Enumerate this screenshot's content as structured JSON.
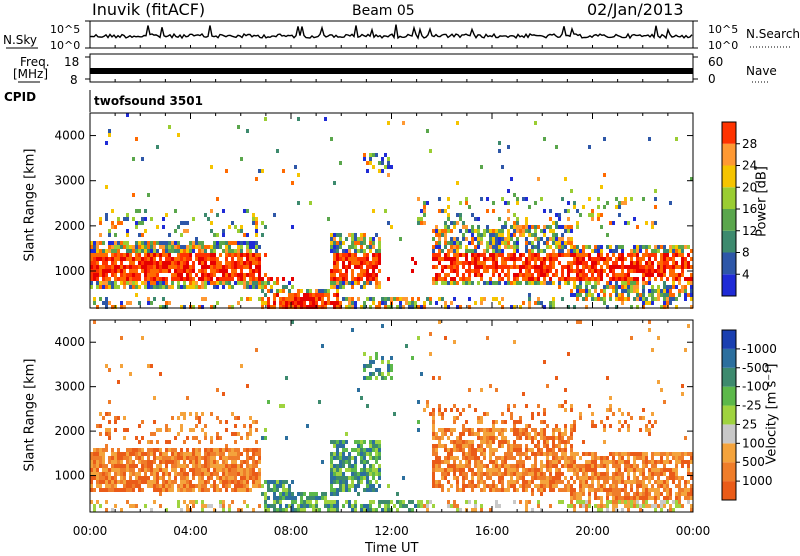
{
  "header": {
    "station": "Inuvik (fitACF)",
    "beam": "Beam 05",
    "date": "02/Jan/2013"
  },
  "strips": {
    "nsky_label": "N.Sky",
    "nsky_ticks": [
      "10^5",
      "10^0"
    ],
    "nsearch_label": "N.Search",
    "nsearch_ticks": [
      "10^5",
      "10^0"
    ],
    "freq_label_top": "Freq.",
    "freq_label_unit": "[MHz]",
    "freq_ticks": [
      "18",
      "8"
    ],
    "nave_label": "Nave",
    "nave_ticks": [
      "60",
      "0"
    ],
    "cpid_label": "CPID",
    "cpid_value": "twofsound 3501"
  },
  "colors": {
    "power": [
      "#1f2bd6",
      "#2e57a8",
      "#3d8a6e",
      "#5aa64c",
      "#9acd32",
      "#f5c400",
      "#ff9933",
      "#ff6a00",
      "#ff3300",
      "#e60000"
    ],
    "velocity": [
      "#1a3fb0",
      "#2c6f9e",
      "#3d8a6e",
      "#5cb84a",
      "#9fd33f",
      "#c8c8c8",
      "#f4a33c",
      "#ef7d2a",
      "#ea5b18",
      "#e21c00"
    ]
  },
  "chart_data": [
    {
      "type": "heatmap",
      "name": "power",
      "ylabel": "Slant Range [km]",
      "ylim": [
        180,
        4500
      ],
      "yticks": [
        "1000",
        "2000",
        "3000",
        "4000"
      ],
      "xlim_hours": [
        0,
        24
      ],
      "colorbar": {
        "label": "Power [dB]",
        "tick_labels": [
          "4",
          "8",
          "12",
          "16",
          "20",
          "24",
          "28"
        ],
        "range": [
          0,
          32
        ]
      }
    },
    {
      "type": "heatmap",
      "name": "velocity",
      "ylabel": "Slant Range [km]",
      "ylim": [
        180,
        4500
      ],
      "yticks": [
        "1000",
        "2000",
        "3000",
        "4000"
      ],
      "xlabel": "Time UT",
      "xticks": [
        "00:00",
        "04:00",
        "08:00",
        "12:00",
        "16:00",
        "20:00",
        "00:00"
      ],
      "colorbar": {
        "label": "Velocity [m s⁻¹]",
        "tick_labels": [
          "-1000",
          "-500",
          "-100",
          "-25",
          "25",
          "100",
          "500",
          "1000"
        ]
      }
    }
  ]
}
